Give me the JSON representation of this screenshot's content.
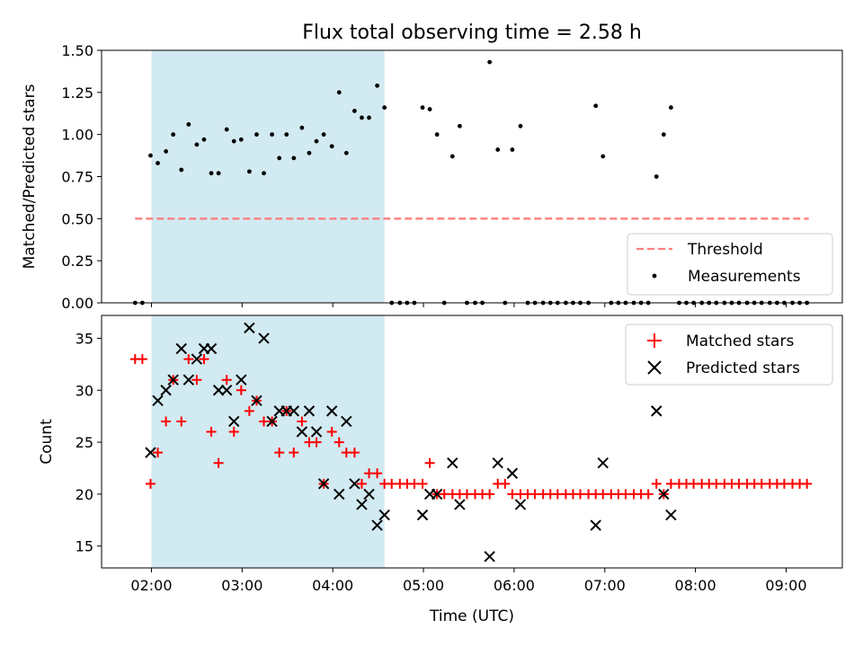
{
  "figure": {
    "title": "Flux total observing time = 2.58 h",
    "xlabel": "Time (UTC)",
    "x_ticks": [
      "02:00",
      "03:00",
      "04:00",
      "05:00",
      "06:00",
      "07:00",
      "08:00",
      "09:00"
    ],
    "colors": {
      "shaded_window": "#add8e6",
      "threshold": "#ff7f7f",
      "measurements": "#000000",
      "matched": "#ff0000",
      "predicted": "#000000"
    }
  },
  "chart_data": [
    {
      "type": "scatter",
      "title": "Flux total observing time = 2.58 h",
      "xlabel": "Time (UTC)",
      "ylabel": "Matched/Predicted stars",
      "x_unit": "hours UTC",
      "xlim": [
        1.45,
        9.62
      ],
      "ylim": [
        0,
        1.5
      ],
      "y_ticks": [
        "0.00",
        "0.25",
        "0.50",
        "0.75",
        "1.00",
        "1.25",
        "1.50"
      ],
      "shaded_window": [
        2.0,
        4.57
      ],
      "threshold": {
        "name": "Threshold",
        "y": 0.5,
        "x_range": [
          1.82,
          9.25
        ]
      },
      "legend": {
        "position": "lower-right",
        "entries": [
          "Threshold",
          "Measurements"
        ]
      },
      "series": [
        {
          "name": "Measurements",
          "marker": "dot",
          "points": [
            [
              1.82,
              0
            ],
            [
              1.9,
              0
            ],
            [
              1.99,
              0.875
            ],
            [
              2.07,
              0.83
            ],
            [
              2.16,
              0.9
            ],
            [
              2.24,
              1.0
            ],
            [
              2.33,
              0.79
            ],
            [
              2.41,
              1.06
            ],
            [
              2.5,
              0.94
            ],
            [
              2.58,
              0.97
            ],
            [
              2.66,
              0.77
            ],
            [
              2.74,
              0.77
            ],
            [
              2.83,
              1.03
            ],
            [
              2.91,
              0.96
            ],
            [
              2.99,
              0.97
            ],
            [
              3.08,
              0.78
            ],
            [
              3.16,
              1.0
            ],
            [
              3.24,
              0.77
            ],
            [
              3.33,
              1.0
            ],
            [
              3.41,
              0.86
            ],
            [
              3.49,
              1.0
            ],
            [
              3.57,
              0.86
            ],
            [
              3.66,
              1.04
            ],
            [
              3.74,
              0.89
            ],
            [
              3.82,
              0.96
            ],
            [
              3.9,
              1.0
            ],
            [
              3.99,
              0.93
            ],
            [
              4.07,
              1.25
            ],
            [
              4.15,
              0.89
            ],
            [
              4.24,
              1.14
            ],
            [
              4.32,
              1.1
            ],
            [
              4.4,
              1.1
            ],
            [
              4.49,
              1.29
            ],
            [
              4.57,
              1.16
            ],
            [
              4.65,
              0
            ],
            [
              4.74,
              0
            ],
            [
              4.82,
              0
            ],
            [
              4.9,
              0
            ],
            [
              4.99,
              1.16
            ],
            [
              5.07,
              1.15
            ],
            [
              5.15,
              1.0
            ],
            [
              5.23,
              0
            ],
            [
              5.32,
              0.87
            ],
            [
              5.4,
              1.05
            ],
            [
              5.48,
              0
            ],
            [
              5.57,
              0
            ],
            [
              5.65,
              0
            ],
            [
              5.73,
              1.43
            ],
            [
              5.82,
              0.91
            ],
            [
              5.9,
              0
            ],
            [
              5.98,
              0.91
            ],
            [
              6.07,
              1.05
            ],
            [
              6.15,
              0
            ],
            [
              6.23,
              0
            ],
            [
              6.32,
              0
            ],
            [
              6.4,
              0
            ],
            [
              6.48,
              0
            ],
            [
              6.57,
              0
            ],
            [
              6.65,
              0
            ],
            [
              6.73,
              0
            ],
            [
              6.82,
              0
            ],
            [
              6.9,
              1.17
            ],
            [
              6.98,
              0.87
            ],
            [
              7.07,
              0
            ],
            [
              7.15,
              0
            ],
            [
              7.23,
              0
            ],
            [
              7.32,
              0
            ],
            [
              7.4,
              0
            ],
            [
              7.48,
              0
            ],
            [
              7.57,
              0.75
            ],
            [
              7.65,
              1.0
            ],
            [
              7.73,
              1.16
            ],
            [
              7.82,
              0
            ],
            [
              7.9,
              0
            ],
            [
              7.98,
              0
            ],
            [
              8.07,
              0
            ],
            [
              8.15,
              0
            ],
            [
              8.23,
              0
            ],
            [
              8.32,
              0
            ],
            [
              8.4,
              0
            ],
            [
              8.48,
              0
            ],
            [
              8.57,
              0
            ],
            [
              8.65,
              0
            ],
            [
              8.73,
              0
            ],
            [
              8.82,
              0
            ],
            [
              8.9,
              0
            ],
            [
              8.98,
              0
            ],
            [
              9.07,
              0
            ],
            [
              9.15,
              0
            ],
            [
              9.23,
              0
            ]
          ]
        }
      ]
    },
    {
      "type": "scatter",
      "xlabel": "Time (UTC)",
      "ylabel": "Count",
      "x_unit": "hours UTC",
      "xlim": [
        1.45,
        9.62
      ],
      "ylim": [
        12.9,
        37.2
      ],
      "y_ticks": [
        "15",
        "20",
        "25",
        "30",
        "35"
      ],
      "shaded_window": [
        2.0,
        4.57
      ],
      "legend": {
        "position": "top-right",
        "entries": [
          "Matched stars",
          "Predicted stars"
        ]
      },
      "series": [
        {
          "name": "Matched stars",
          "marker": "plus",
          "points": [
            [
              1.82,
              33
            ],
            [
              1.9,
              33
            ],
            [
              1.99,
              21
            ],
            [
              2.07,
              24
            ],
            [
              2.16,
              27
            ],
            [
              2.24,
              31
            ],
            [
              2.33,
              27
            ],
            [
              2.41,
              33
            ],
            [
              2.5,
              31
            ],
            [
              2.58,
              33
            ],
            [
              2.66,
              26
            ],
            [
              2.74,
              23
            ],
            [
              2.83,
              31
            ],
            [
              2.91,
              26
            ],
            [
              2.99,
              30
            ],
            [
              3.08,
              28
            ],
            [
              3.16,
              29
            ],
            [
              3.24,
              27
            ],
            [
              3.33,
              27
            ],
            [
              3.41,
              24
            ],
            [
              3.49,
              28
            ],
            [
              3.57,
              24
            ],
            [
              3.66,
              27
            ],
            [
              3.74,
              25
            ],
            [
              3.82,
              25
            ],
            [
              3.9,
              21
            ],
            [
              3.99,
              26
            ],
            [
              4.07,
              25
            ],
            [
              4.15,
              24
            ],
            [
              4.24,
              24
            ],
            [
              4.32,
              21
            ],
            [
              4.4,
              22
            ],
            [
              4.49,
              22
            ],
            [
              4.57,
              21
            ],
            [
              4.65,
              21
            ],
            [
              4.74,
              21
            ],
            [
              4.82,
              21
            ],
            [
              4.9,
              21
            ],
            [
              4.99,
              21
            ],
            [
              5.07,
              23
            ],
            [
              5.15,
              20
            ],
            [
              5.23,
              20
            ],
            [
              5.32,
              20
            ],
            [
              5.4,
              20
            ],
            [
              5.48,
              20
            ],
            [
              5.57,
              20
            ],
            [
              5.65,
              20
            ],
            [
              5.73,
              20
            ],
            [
              5.82,
              21
            ],
            [
              5.9,
              21
            ],
            [
              5.98,
              20
            ],
            [
              6.07,
              20
            ],
            [
              6.15,
              20
            ],
            [
              6.23,
              20
            ],
            [
              6.32,
              20
            ],
            [
              6.4,
              20
            ],
            [
              6.48,
              20
            ],
            [
              6.57,
              20
            ],
            [
              6.65,
              20
            ],
            [
              6.73,
              20
            ],
            [
              6.82,
              20
            ],
            [
              6.9,
              20
            ],
            [
              6.98,
              20
            ],
            [
              7.07,
              20
            ],
            [
              7.15,
              20
            ],
            [
              7.23,
              20
            ],
            [
              7.32,
              20
            ],
            [
              7.4,
              20
            ],
            [
              7.48,
              20
            ],
            [
              7.57,
              21
            ],
            [
              7.65,
              20
            ],
            [
              7.73,
              21
            ],
            [
              7.82,
              21
            ],
            [
              7.9,
              21
            ],
            [
              7.98,
              21
            ],
            [
              8.07,
              21
            ],
            [
              8.15,
              21
            ],
            [
              8.23,
              21
            ],
            [
              8.32,
              21
            ],
            [
              8.4,
              21
            ],
            [
              8.48,
              21
            ],
            [
              8.57,
              21
            ],
            [
              8.65,
              21
            ],
            [
              8.73,
              21
            ],
            [
              8.82,
              21
            ],
            [
              8.9,
              21
            ],
            [
              8.98,
              21
            ],
            [
              9.07,
              21
            ],
            [
              9.15,
              21
            ],
            [
              9.23,
              21
            ]
          ]
        },
        {
          "name": "Predicted stars",
          "marker": "x",
          "points": [
            [
              1.99,
              24
            ],
            [
              2.07,
              29
            ],
            [
              2.16,
              30
            ],
            [
              2.24,
              31
            ],
            [
              2.33,
              34
            ],
            [
              2.41,
              31
            ],
            [
              2.5,
              33
            ],
            [
              2.58,
              34
            ],
            [
              2.66,
              34
            ],
            [
              2.74,
              30
            ],
            [
              2.83,
              30
            ],
            [
              2.91,
              27
            ],
            [
              2.99,
              31
            ],
            [
              3.08,
              36
            ],
            [
              3.16,
              29
            ],
            [
              3.24,
              35
            ],
            [
              3.33,
              27
            ],
            [
              3.41,
              28
            ],
            [
              3.49,
              28
            ],
            [
              3.57,
              28
            ],
            [
              3.66,
              26
            ],
            [
              3.74,
              28
            ],
            [
              3.82,
              26
            ],
            [
              3.9,
              21
            ],
            [
              3.99,
              28
            ],
            [
              4.07,
              20
            ],
            [
              4.15,
              27
            ],
            [
              4.24,
              21
            ],
            [
              4.32,
              19
            ],
            [
              4.4,
              20
            ],
            [
              4.49,
              17
            ],
            [
              4.57,
              18
            ],
            [
              4.99,
              18
            ],
            [
              5.07,
              20
            ],
            [
              5.15,
              20
            ],
            [
              5.32,
              23
            ],
            [
              5.4,
              19
            ],
            [
              5.73,
              14
            ],
            [
              5.82,
              23
            ],
            [
              5.98,
              22
            ],
            [
              6.07,
              19
            ],
            [
              6.9,
              17
            ],
            [
              6.98,
              23
            ],
            [
              7.57,
              28
            ],
            [
              7.65,
              20
            ],
            [
              7.73,
              18
            ]
          ]
        }
      ]
    }
  ]
}
